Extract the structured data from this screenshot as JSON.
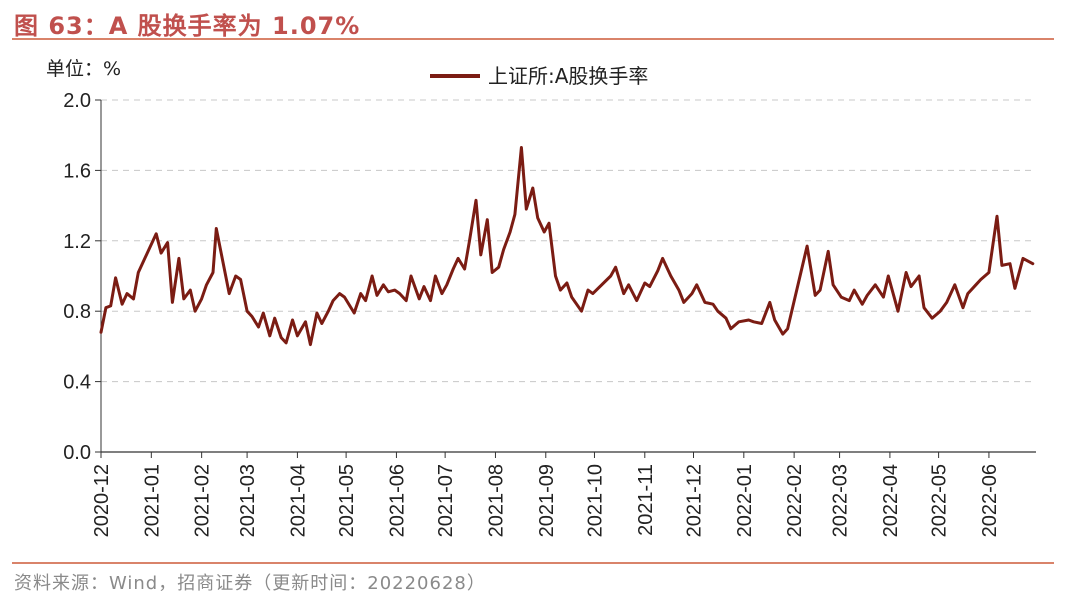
{
  "header": {
    "title": "图 63：A 股换手率为 1.07%"
  },
  "footer": {
    "source": "资料来源：Wind，招商证券（更新时间：20220628）"
  },
  "chart_data": {
    "type": "line",
    "unit_label": "单位：%",
    "ylim": [
      0,
      2.0
    ],
    "yticks": [
      "0.0",
      "0.4",
      "0.8",
      "1.2",
      "1.6",
      "2.0"
    ],
    "grid": true,
    "legend_position": "top-center",
    "color": "#7b1c13",
    "x_tick_labels": [
      "2020-12",
      "2021-01",
      "2021-02",
      "2021-03",
      "2021-04",
      "2021-05",
      "2021-06",
      "2021-07",
      "2021-08",
      "2021-09",
      "2021-10",
      "2021-11",
      "2021-12",
      "2022-01",
      "2022-02",
      "2022-03",
      "2022-04",
      "2022-05",
      "2022-06"
    ],
    "series": [
      {
        "name": "上证所:A股换手率",
        "x": [
          "2020-12-01",
          "2020-12-04",
          "2020-12-07",
          "2020-12-10",
          "2020-12-14",
          "2020-12-17",
          "2020-12-21",
          "2020-12-24",
          "2020-12-28",
          "2021-01-04",
          "2021-01-07",
          "2021-01-11",
          "2021-01-14",
          "2021-01-18",
          "2021-01-21",
          "2021-01-25",
          "2021-01-28",
          "2021-02-01",
          "2021-02-04",
          "2021-02-08",
          "2021-02-10",
          "2021-02-18",
          "2021-02-22",
          "2021-02-25",
          "2021-03-01",
          "2021-03-04",
          "2021-03-08",
          "2021-03-11",
          "2021-03-15",
          "2021-03-18",
          "2021-03-22",
          "2021-03-25",
          "2021-03-29",
          "2021-04-01",
          "2021-04-06",
          "2021-04-09",
          "2021-04-13",
          "2021-04-16",
          "2021-04-20",
          "2021-04-23",
          "2021-04-27",
          "2021-04-30",
          "2021-05-06",
          "2021-05-10",
          "2021-05-13",
          "2021-05-17",
          "2021-05-20",
          "2021-05-24",
          "2021-05-27",
          "2021-05-31",
          "2021-06-03",
          "2021-06-07",
          "2021-06-10",
          "2021-06-15",
          "2021-06-18",
          "2021-06-22",
          "2021-06-25",
          "2021-06-29",
          "2021-07-02",
          "2021-07-06",
          "2021-07-09",
          "2021-07-13",
          "2021-07-16",
          "2021-07-20",
          "2021-07-23",
          "2021-07-27",
          "2021-07-30",
          "2021-08-03",
          "2021-08-06",
          "2021-08-10",
          "2021-08-13",
          "2021-08-17",
          "2021-08-20",
          "2021-08-24",
          "2021-08-27",
          "2021-08-31",
          "2021-09-03",
          "2021-09-07",
          "2021-09-10",
          "2021-09-14",
          "2021-09-17",
          "2021-09-23",
          "2021-09-27",
          "2021-09-30",
          "2021-10-11",
          "2021-10-14",
          "2021-10-19",
          "2021-10-22",
          "2021-10-27",
          "2021-11-01",
          "2021-11-04",
          "2021-11-09",
          "2021-11-12",
          "2021-11-17",
          "2021-11-22",
          "2021-11-25",
          "2021-11-30",
          "2021-12-03",
          "2021-12-08",
          "2021-12-13",
          "2021-12-16",
          "2021-12-21",
          "2021-12-24",
          "2021-12-29",
          "2022-01-04",
          "2022-01-07",
          "2022-01-12",
          "2022-01-17",
          "2022-01-20",
          "2022-01-25",
          "2022-01-28",
          "2022-02-09",
          "2022-02-14",
          "2022-02-17",
          "2022-02-22",
          "2022-02-25",
          "2022-03-02",
          "2022-03-07",
          "2022-03-10",
          "2022-03-15",
          "2022-03-18",
          "2022-03-23",
          "2022-03-28",
          "2022-03-31",
          "2022-04-06",
          "2022-04-11",
          "2022-04-14",
          "2022-04-19",
          "2022-04-22",
          "2022-04-27",
          "2022-05-02",
          "2022-05-06",
          "2022-05-11",
          "2022-05-16",
          "2022-05-19",
          "2022-05-24",
          "2022-05-27",
          "2022-06-01",
          "2022-06-06",
          "2022-06-09",
          "2022-06-14",
          "2022-06-17",
          "2022-06-22",
          "2022-06-28"
        ],
        "values": [
          0.68,
          0.82,
          0.83,
          0.99,
          0.84,
          0.9,
          0.87,
          1.02,
          1.1,
          1.24,
          1.13,
          1.19,
          0.85,
          1.1,
          0.87,
          0.92,
          0.8,
          0.87,
          0.95,
          1.02,
          1.27,
          0.9,
          1.0,
          0.98,
          0.8,
          0.77,
          0.71,
          0.79,
          0.66,
          0.76,
          0.65,
          0.62,
          0.75,
          0.66,
          0.74,
          0.61,
          0.79,
          0.73,
          0.8,
          0.86,
          0.9,
          0.88,
          0.79,
          0.9,
          0.86,
          1.0,
          0.89,
          0.95,
          0.91,
          0.92,
          0.9,
          0.86,
          1.0,
          0.87,
          0.94,
          0.86,
          1.0,
          0.9,
          0.95,
          1.04,
          1.1,
          1.04,
          1.2,
          1.43,
          1.12,
          1.32,
          1.02,
          1.05,
          1.15,
          1.25,
          1.35,
          1.73,
          1.38,
          1.5,
          1.33,
          1.25,
          1.3,
          1.0,
          0.92,
          0.96,
          0.88,
          0.8,
          0.92,
          0.9,
          1.0,
          1.05,
          0.9,
          0.95,
          0.86,
          0.96,
          0.94,
          1.03,
          1.1,
          1.0,
          0.92,
          0.85,
          0.9,
          0.95,
          0.85,
          0.84,
          0.8,
          0.76,
          0.7,
          0.74,
          0.75,
          0.74,
          0.73,
          0.85,
          0.75,
          0.67,
          0.7,
          1.17,
          0.89,
          0.92,
          1.14,
          0.95,
          0.88,
          0.86,
          0.92,
          0.84,
          0.89,
          0.95,
          0.88,
          1.0,
          0.8,
          1.02,
          0.94,
          1.0,
          0.82,
          0.76,
          0.8,
          0.85,
          0.95,
          0.82,
          0.9,
          0.95,
          0.98,
          1.02,
          1.34,
          1.06,
          1.07,
          0.93,
          1.1,
          1.07
        ]
      }
    ]
  }
}
